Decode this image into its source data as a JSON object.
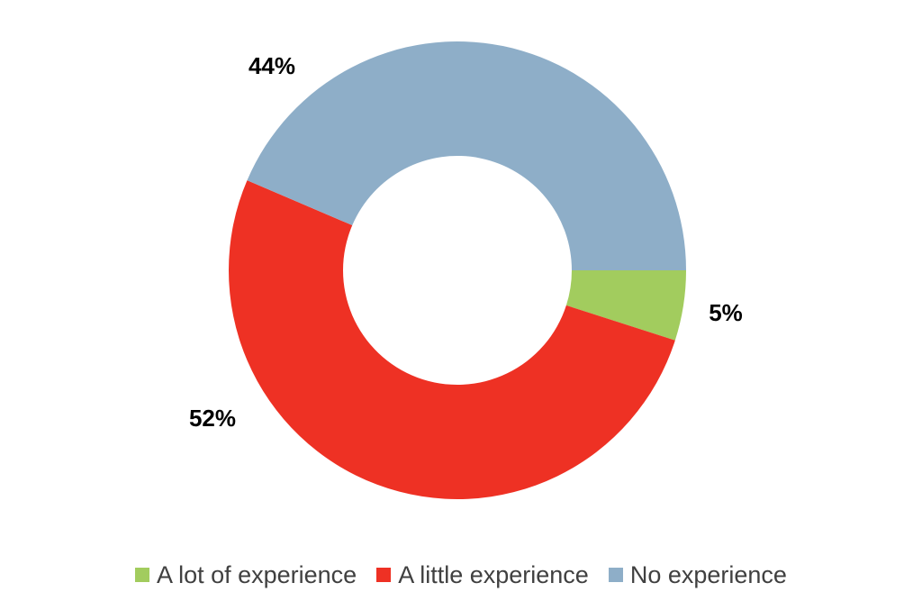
{
  "chart_data": {
    "type": "pie",
    "variant": "donut",
    "categories": [
      "A lot of experience",
      "A little experience",
      "No experience"
    ],
    "values": [
      5,
      52,
      44
    ],
    "labels": [
      "5%",
      "52%",
      "44%"
    ],
    "colors": [
      "#a2cc5e",
      "#ee3124",
      "#8eaec8"
    ],
    "legend_position": "bottom"
  }
}
